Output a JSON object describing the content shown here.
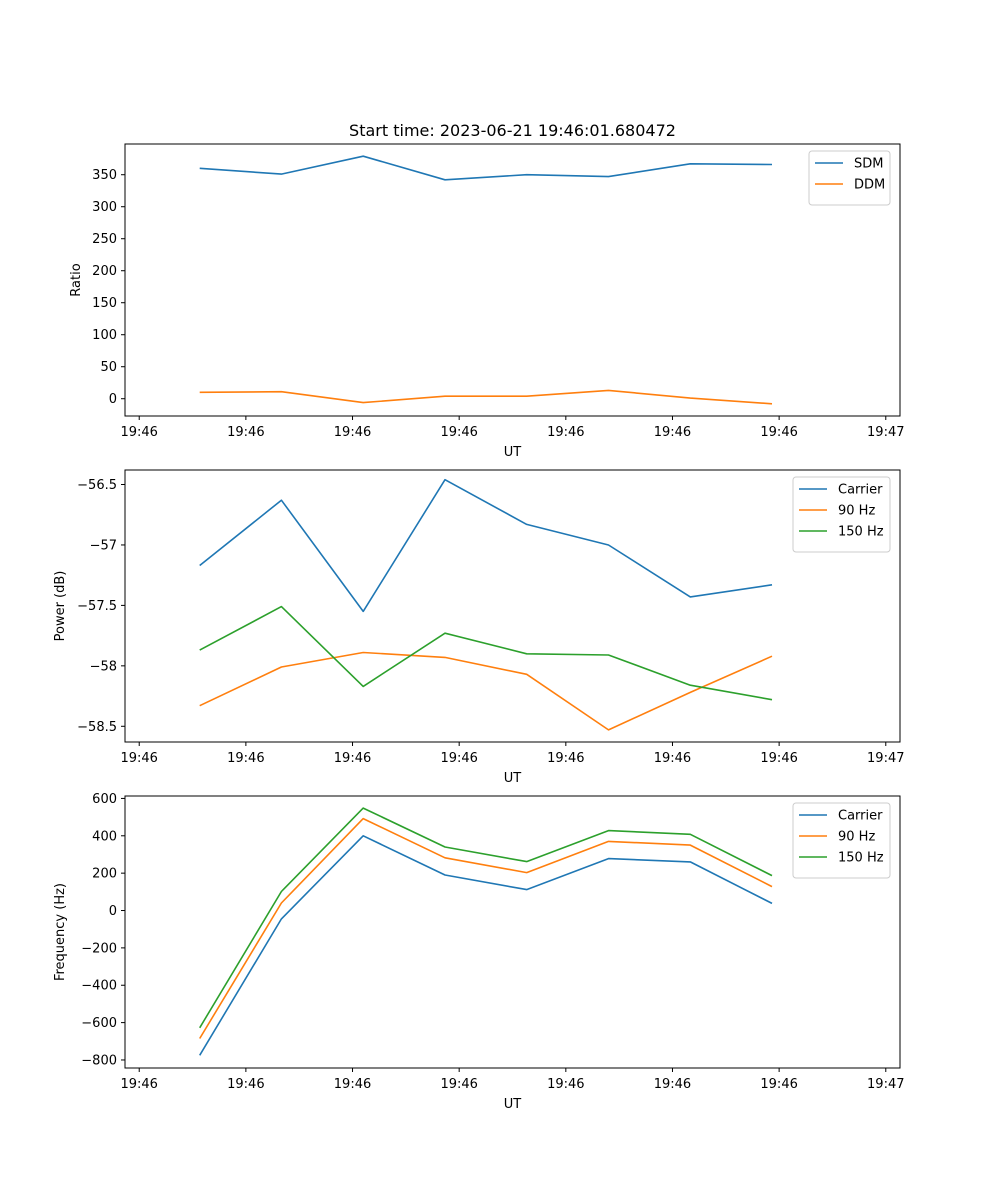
{
  "title": "Start time: 2023-06-21 19:46:01.680472",
  "chart_data": [
    {
      "type": "line",
      "title": "Start time: 2023-06-21 19:46:01.680472",
      "xlabel": "UT",
      "ylabel": "Ratio",
      "x_tick_labels": [
        "19:46",
        "19:46",
        "19:46",
        "19:46",
        "19:46",
        "19:46",
        "19:46",
        "19:47"
      ],
      "x": [
        1,
        2,
        3,
        4,
        5,
        6,
        7,
        8
      ],
      "xlim": [
        -0.75,
        8.5
      ],
      "yticks": [
        0,
        50,
        100,
        150,
        200,
        250,
        300,
        350
      ],
      "ylim": [
        -27,
        398
      ],
      "legend": "top-right",
      "grid": false,
      "series": [
        {
          "name": "SDM",
          "color": "#1f77b4",
          "values": [
            360,
            351,
            379,
            342,
            350,
            347,
            367,
            366
          ]
        },
        {
          "name": "DDM",
          "color": "#ff7f0e",
          "values": [
            10,
            11,
            -6,
            4,
            4,
            13,
            1,
            -8
          ]
        }
      ]
    },
    {
      "type": "line",
      "xlabel": "UT",
      "ylabel": "Power (dB)",
      "x_tick_labels": [
        "19:46",
        "19:46",
        "19:46",
        "19:46",
        "19:46",
        "19:46",
        "19:46",
        "19:47"
      ],
      "x": [
        1,
        2,
        3,
        4,
        5,
        6,
        7,
        8
      ],
      "xlim": [
        -0.75,
        8.5
      ],
      "yticks": [
        -58.5,
        -58.0,
        -57.5,
        -57.0,
        -56.5
      ],
      "ylim": [
        -58.63,
        -56.38
      ],
      "legend": "top-right",
      "grid": false,
      "series": [
        {
          "name": "Carrier",
          "color": "#1f77b4",
          "values": [
            -57.17,
            -56.63,
            -57.55,
            -56.46,
            -56.83,
            -57.0,
            -57.43,
            -57.33
          ]
        },
        {
          "name": "90 Hz",
          "color": "#ff7f0e",
          "values": [
            -58.33,
            -58.01,
            -57.89,
            -57.93,
            -58.07,
            -58.53,
            -58.22,
            -57.92
          ]
        },
        {
          "name": "150 Hz",
          "color": "#2ca02c",
          "values": [
            -57.87,
            -57.51,
            -58.17,
            -57.73,
            -57.9,
            -57.91,
            -58.16,
            -58.28
          ]
        }
      ]
    },
    {
      "type": "line",
      "xlabel": "UT",
      "ylabel": "Frequency (Hz)",
      "x_tick_labels": [
        "19:46",
        "19:46",
        "19:46",
        "19:46",
        "19:46",
        "19:46",
        "19:46",
        "19:47"
      ],
      "x": [
        1,
        2,
        3,
        4,
        5,
        6,
        7,
        8
      ],
      "xlim": [
        -0.75,
        8.5
      ],
      "yticks": [
        -800,
        -600,
        -400,
        -200,
        0,
        200,
        400,
        600
      ],
      "ylim": [
        -843,
        613
      ],
      "legend": "top-right",
      "grid": false,
      "series": [
        {
          "name": "Carrier",
          "color": "#1f77b4",
          "values": [
            -775,
            -45,
            400,
            190,
            112,
            278,
            260,
            38
          ]
        },
        {
          "name": "90 Hz",
          "color": "#ff7f0e",
          "values": [
            -685,
            40,
            492,
            282,
            203,
            370,
            350,
            128
          ]
        },
        {
          "name": "150 Hz",
          "color": "#2ca02c",
          "values": [
            -628,
            102,
            548,
            340,
            262,
            428,
            408,
            187
          ]
        }
      ]
    }
  ]
}
